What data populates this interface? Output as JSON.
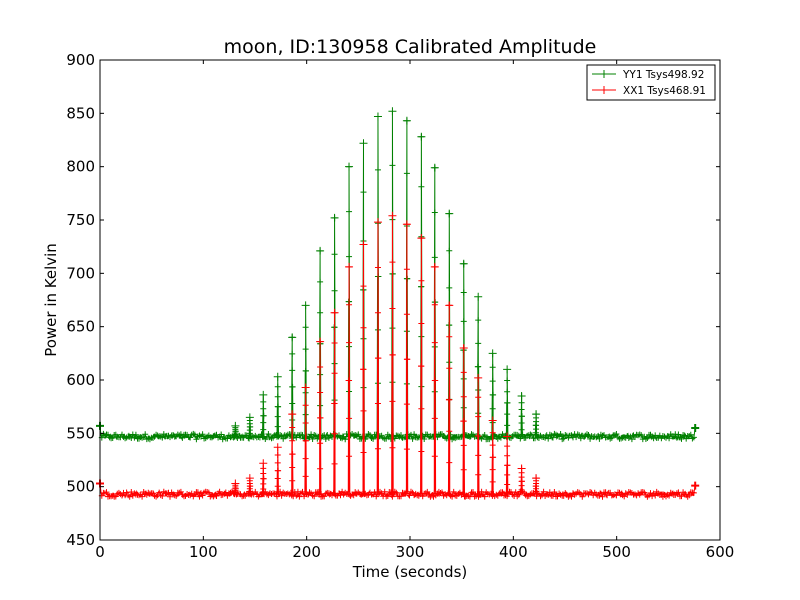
{
  "chart_data": {
    "type": "line",
    "title": "moon, ID:130958 Calibrated Amplitude",
    "xlabel": "Time (seconds)",
    "ylabel": "Power in Kelvin",
    "xlim": [
      0,
      600
    ],
    "ylim": [
      450,
      900
    ],
    "x_ticks": [
      "0",
      "100",
      "200",
      "300",
      "400",
      "500",
      "600"
    ],
    "y_ticks": [
      "450",
      "500",
      "550",
      "600",
      "650",
      "700",
      "750",
      "800",
      "850",
      "900"
    ],
    "grid": false,
    "legend_position": "top-right",
    "marker": "+",
    "series": [
      {
        "name": "YY1 Tsys498.92",
        "color": "#008000",
        "baseline": 547,
        "noise": 2.5,
        "x_start": 0,
        "x_end": 576,
        "end_points": [
          [
            0,
            557
          ],
          [
            576,
            555
          ]
        ],
        "peaks": [
          [
            131,
            557
          ],
          [
            145,
            565
          ],
          [
            158,
            586
          ],
          [
            172,
            603
          ],
          [
            186,
            640
          ],
          [
            199,
            670
          ],
          [
            213,
            721
          ],
          [
            227,
            752
          ],
          [
            241,
            800
          ],
          [
            255,
            822
          ],
          [
            269,
            847
          ],
          [
            283,
            852
          ],
          [
            297,
            843
          ],
          [
            311,
            828
          ],
          [
            324,
            799
          ],
          [
            338,
            756
          ],
          [
            352,
            709
          ],
          [
            366,
            678
          ],
          [
            380,
            625
          ],
          [
            394,
            610
          ],
          [
            408,
            585
          ],
          [
            422,
            568
          ]
        ]
      },
      {
        "name": "XX1 Tsys468.91",
        "color": "#ff0000",
        "baseline": 493,
        "noise": 2.5,
        "x_start": 0,
        "x_end": 576,
        "end_points": [
          [
            0,
            503
          ],
          [
            576,
            501
          ]
        ],
        "peaks": [
          [
            131,
            503
          ],
          [
            145,
            508
          ],
          [
            158,
            522
          ],
          [
            172,
            537
          ],
          [
            186,
            568
          ],
          [
            199,
            593
          ],
          [
            213,
            636
          ],
          [
            227,
            663
          ],
          [
            241,
            706
          ],
          [
            255,
            727
          ],
          [
            269,
            748
          ],
          [
            283,
            754
          ],
          [
            297,
            746
          ],
          [
            311,
            733
          ],
          [
            324,
            706
          ],
          [
            338,
            670
          ],
          [
            352,
            630
          ],
          [
            366,
            602
          ],
          [
            380,
            562
          ],
          [
            394,
            547
          ],
          [
            408,
            517
          ],
          [
            422,
            508
          ]
        ]
      }
    ]
  }
}
